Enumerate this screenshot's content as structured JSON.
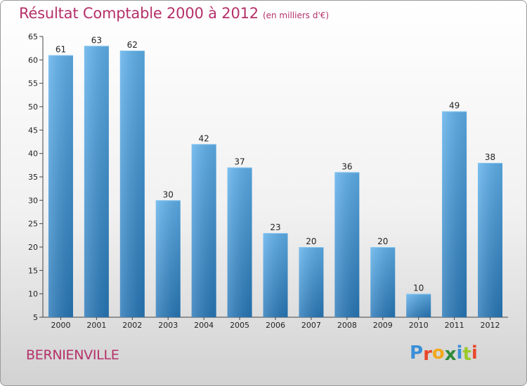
{
  "title": "Résultat Comptable 2000 à 2012",
  "unit_label": "(en milliers d'€)",
  "commune": "BERNIENVILLE",
  "logo": {
    "letters": [
      "P",
      "r",
      "o",
      "x",
      "i",
      "t",
      "i"
    ],
    "colors": [
      "#3a8fd8",
      "#e8482c",
      "#f2a81d",
      "#2f8a3c",
      "#3a8fd8",
      "#9bc92c",
      "#e8482c"
    ]
  },
  "colors": {
    "bar_top": "#5fb1ec",
    "bar_bottom": "#2878b8",
    "title": "#b5306a"
  },
  "chart_data": {
    "type": "bar",
    "title": "Résultat Comptable 2000 à 2012",
    "categories": [
      "2000",
      "2001",
      "2002",
      "2003",
      "2004",
      "2005",
      "2006",
      "2007",
      "2008",
      "2009",
      "2010",
      "2011",
      "2012"
    ],
    "values": [
      61,
      63,
      62,
      30,
      42,
      37,
      23,
      20,
      36,
      20,
      10,
      49,
      38
    ],
    "ylim": [
      5,
      65
    ],
    "yticks": [
      5,
      10,
      15,
      20,
      25,
      30,
      35,
      40,
      45,
      50,
      55,
      60,
      65
    ],
    "grid": false,
    "data_labels": true
  }
}
